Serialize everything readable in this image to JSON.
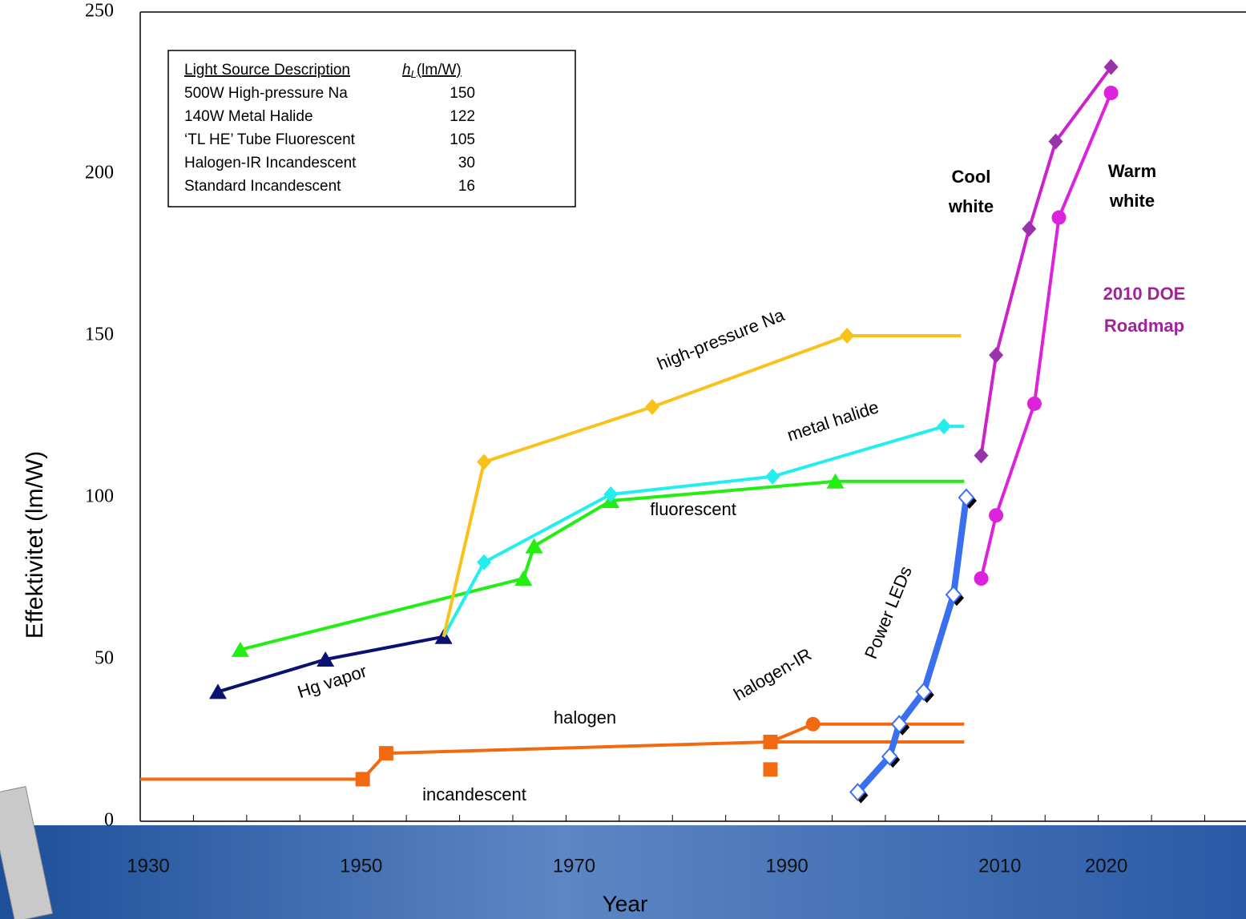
{
  "chart_data": {
    "type": "line",
    "xlabel": "Year",
    "ylabel": "Effektivitet (lm/W)",
    "xlim": [
      1930,
      2033.5
    ],
    "ylim": [
      0,
      250
    ],
    "xticks": [
      1930,
      1950,
      1970,
      1990,
      2010,
      2020
    ],
    "xtick_marks": [
      1930,
      1935,
      1940,
      1945,
      1950,
      1955,
      1960,
      1965,
      1970,
      1975,
      1980,
      1985,
      1990,
      1995,
      2000,
      2005,
      2010,
      2015,
      2020,
      2025,
      2030
    ],
    "yticks": [
      0,
      50,
      100,
      150,
      200,
      250
    ],
    "series": [
      {
        "color": "#f26a10",
        "marker": "square",
        "marker_ends": "none",
        "x": [
          1930,
          1950.9,
          1953.1,
          1989.2,
          2007.4
        ],
        "values": [
          13,
          13,
          21,
          24.5,
          24.5
        ]
      },
      {
        "color": "#f26a10",
        "marker": "square",
        "line": false,
        "x": [
          1989.2
        ],
        "values": [
          16
        ]
      },
      {
        "color": "#f26a10",
        "marker": "circle",
        "marker_ends": "none",
        "x": [
          1989.2,
          1993.2,
          2007.4
        ],
        "values": [
          24.5,
          30,
          30
        ]
      },
      {
        "color": "#0a1172",
        "marker": "triangle",
        "marker_ends": "both",
        "x": [
          1937.3,
          1947.4,
          1958.5
        ],
        "values": [
          40,
          50,
          57
        ]
      },
      {
        "color": "#22ee11",
        "marker": "triangle",
        "marker_ends": "start",
        "x": [
          1939.4,
          1966,
          1967,
          1974.2,
          1995.3,
          2007.4
        ],
        "values": [
          53,
          75,
          85,
          99,
          105,
          105
        ]
      },
      {
        "color": "#22eeee",
        "marker": "diamond",
        "marker_ends": "none",
        "x": [
          1958.5,
          1962.3,
          1974.2,
          1989.4,
          2005.5,
          2007.4
        ],
        "values": [
          57,
          80,
          101,
          106.5,
          122,
          122
        ]
      },
      {
        "color": "#f9c11a",
        "marker": "diamond",
        "marker_ends": "none",
        "x": [
          1958.5,
          1962.3,
          1978.1,
          1996.4,
          2007.1
        ],
        "values": [
          57,
          111,
          128,
          150,
          150
        ]
      },
      {
        "color": "#3a6ff0",
        "marker": "open-diamond",
        "marker_ends": "both",
        "width": 8,
        "x": [
          1997.4,
          2000.4,
          2001.3,
          2003.6,
          2006.4,
          2007.6
        ],
        "values": [
          9,
          20,
          30,
          40,
          70,
          100
        ]
      },
      {
        "color": "#cc22cc",
        "marker": "diamond",
        "marker_color": "#9933aa",
        "marker_ends": "both",
        "x": [
          2009,
          2010.4,
          2013.5,
          2016,
          2021.2
        ],
        "values": [
          113,
          144,
          183,
          210,
          233
        ]
      },
      {
        "color": "#dd22dd",
        "marker": "circle",
        "marker_ends": "both",
        "x": [
          2009,
          2010.4,
          2014,
          2016.3,
          2021.2
        ],
        "values": [
          75,
          94.5,
          129,
          186.5,
          225
        ]
      }
    ],
    "annotations": [
      [
        "high-pressure Na"
      ],
      [
        "metal halide"
      ],
      [
        "fluorescent"
      ],
      [
        "Hg vapor"
      ],
      [
        "halogen-IR"
      ],
      [
        "halogen"
      ],
      [
        "incandescent"
      ],
      [
        "Power LEDs"
      ],
      [
        "Cool",
        "white"
      ],
      [
        "Warm",
        "white"
      ],
      [
        "2010 DOE",
        "Roadmap"
      ]
    ],
    "table": {
      "header": {
        "description": "Light Source Description",
        "symbol": "h",
        "subscript": "L",
        "unit": "(lm/W)"
      },
      "rows": [
        [
          "500W High-pressure Na",
          150
        ],
        [
          "140W Metal Halide",
          122
        ],
        [
          "‘TL HE’ Tube Fluorescent",
          105
        ],
        [
          "Halogen-IR Incandescent",
          30
        ],
        [
          "Standard Incandescent",
          16
        ]
      ]
    }
  }
}
